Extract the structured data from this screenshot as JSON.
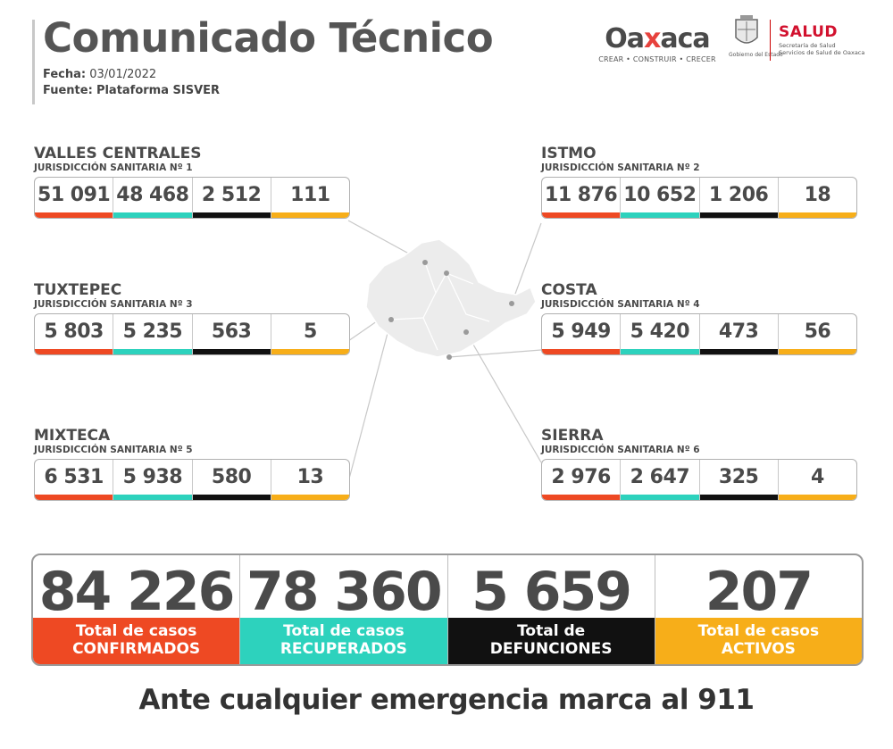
{
  "header": {
    "title": "Comunicado Técnico",
    "date_label": "Fecha:",
    "date_value": "03/01/2022",
    "source_label": "Fuente:",
    "source_value": "Plataforma SISVER"
  },
  "logos": {
    "brand_pre": "Oa",
    "brand_x": "x",
    "brand_post": "aca",
    "brand_tagline": "CREAR • CONSTRUIR • CRECER",
    "seal_caption": "Gobierno del Estado",
    "salud_title": "SALUD",
    "salud_line1": "Secretaría de Salud",
    "salud_line2": "Servicios de Salud de Oaxaca"
  },
  "colors": {
    "confirmados": "#ee4923",
    "recuperados": "#2dd2bd",
    "defunciones": "#111111",
    "activos": "#f7ae19"
  },
  "regions": [
    {
      "name": "VALLES CENTRALES",
      "sub": "JURISDICCIÓN SANITARIA Nº 1",
      "values": [
        "51 091",
        "48 468",
        "2 512",
        "111"
      ]
    },
    {
      "name": "ISTMO",
      "sub": "JURISDICCIÓN SANITARIA Nº 2",
      "values": [
        "11 876",
        "10 652",
        "1 206",
        "18"
      ]
    },
    {
      "name": "TUXTEPEC",
      "sub": "JURISDICCIÓN SANITARIA Nº 3",
      "values": [
        "5 803",
        "5 235",
        "563",
        "5"
      ]
    },
    {
      "name": "COSTA",
      "sub": "JURISDICCIÓN SANITARIA Nº 4",
      "values": [
        "5 949",
        "5 420",
        "473",
        "56"
      ]
    },
    {
      "name": "MIXTECA",
      "sub": "JURISDICCIÓN SANITARIA Nº 5",
      "values": [
        "6 531",
        "5 938",
        "580",
        "13"
      ]
    },
    {
      "name": "SIERRA",
      "sub": "JURISDICCIÓN SANITARIA Nº 6",
      "values": [
        "2 976",
        "2 647",
        "325",
        "4"
      ]
    }
  ],
  "totals": [
    {
      "value": "84 226",
      "line1": "Total de casos",
      "line2": "CONFIRMADOS"
    },
    {
      "value": "78 360",
      "line1": "Total de casos",
      "line2": "RECUPERADOS"
    },
    {
      "value": "5 659",
      "line1": "Total de",
      "line2": "DEFUNCIONES"
    },
    {
      "value": "207",
      "line1": "Total de casos",
      "line2": "ACTIVOS"
    }
  ],
  "footer": "Ante cualquier emergencia marca al 911"
}
